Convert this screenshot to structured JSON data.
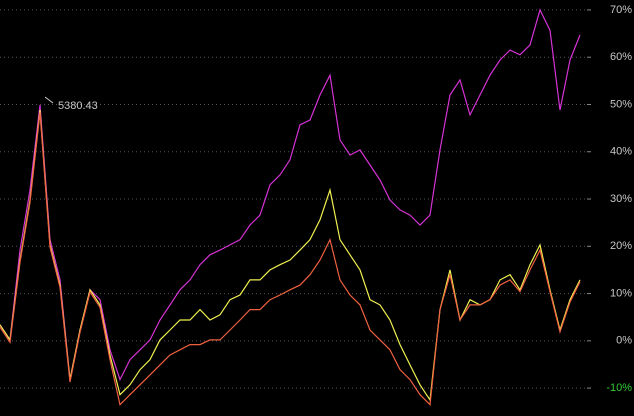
{
  "chart_data": {
    "type": "line",
    "annotation": "5380.43",
    "ylim": [
      -15.9,
      72.1
    ],
    "yticks": [
      {
        "value": 70,
        "label": "70%"
      },
      {
        "value": 60,
        "label": "60%"
      },
      {
        "value": 50,
        "label": "50%"
      },
      {
        "value": 40,
        "label": "40%"
      },
      {
        "value": 30,
        "label": "30%"
      },
      {
        "value": 20,
        "label": "20%"
      },
      {
        "value": 10,
        "label": "10%"
      },
      {
        "value": 0,
        "label": "0%"
      },
      {
        "value": -10,
        "label": "-10%"
      }
    ],
    "grid": true,
    "series": [
      {
        "color": "#d633d6",
        "values": [
          3.4,
          0.2,
          19.2,
          31.9,
          49.9,
          21.4,
          12.9,
          -8.2,
          2.3,
          10.8,
          8.7,
          -1.9,
          -8.2,
          -4.0,
          -1.9,
          0.2,
          4.4,
          7.6,
          10.8,
          12.9,
          16.1,
          18.2,
          19.2,
          20.3,
          21.4,
          24.5,
          26.6,
          33.0,
          35.1,
          38.3,
          45.7,
          46.7,
          52.0,
          56.2,
          42.5,
          39.3,
          40.4,
          37.2,
          34.0,
          29.8,
          27.7,
          26.6,
          24.5,
          26.6,
          40.4,
          52.0,
          55.2,
          47.8,
          52.0,
          56.2,
          59.4,
          61.5,
          60.5,
          62.6,
          70.0,
          65.7,
          48.8,
          59.4,
          64.7
        ]
      },
      {
        "color": "#f0f050",
        "values": [
          3.4,
          0.2,
          17.1,
          29.8,
          48.8,
          20.3,
          11.8,
          -8.2,
          2.3,
          10.8,
          7.6,
          -3.0,
          -11.4,
          -9.3,
          -6.1,
          -4.0,
          0.2,
          2.3,
          4.4,
          4.4,
          6.6,
          4.4,
          5.5,
          8.7,
          9.7,
          12.9,
          12.9,
          15.0,
          16.1,
          17.1,
          19.2,
          21.4,
          25.6,
          31.9,
          21.4,
          18.2,
          15.0,
          8.7,
          7.6,
          4.4,
          -0.8,
          -5.1,
          -9.3,
          -12.5,
          6.6,
          15.0,
          4.4,
          8.7,
          7.6,
          8.7,
          12.9,
          14.0,
          10.8,
          16.1,
          20.3,
          10.8,
          2.3,
          8.7,
          12.9
        ]
      },
      {
        "color": "#f06040",
        "values": [
          2.9,
          -0.3,
          16.6,
          29.3,
          48.3,
          19.8,
          11.3,
          -8.7,
          1.8,
          10.3,
          7.1,
          -4.0,
          -13.5,
          -11.4,
          -9.3,
          -7.2,
          -5.1,
          -3.0,
          -1.9,
          -0.8,
          -0.8,
          0.2,
          0.2,
          2.3,
          4.4,
          6.6,
          6.6,
          8.7,
          9.7,
          10.8,
          11.8,
          14.0,
          17.1,
          21.4,
          12.9,
          9.7,
          7.6,
          2.3,
          0.2,
          -1.9,
          -6.1,
          -8.2,
          -11.4,
          -13.5,
          6.6,
          14.0,
          4.4,
          7.6,
          7.6,
          8.7,
          11.8,
          12.9,
          10.4,
          15.0,
          19.2,
          10.4,
          1.9,
          8.2,
          12.5
        ]
      }
    ]
  }
}
